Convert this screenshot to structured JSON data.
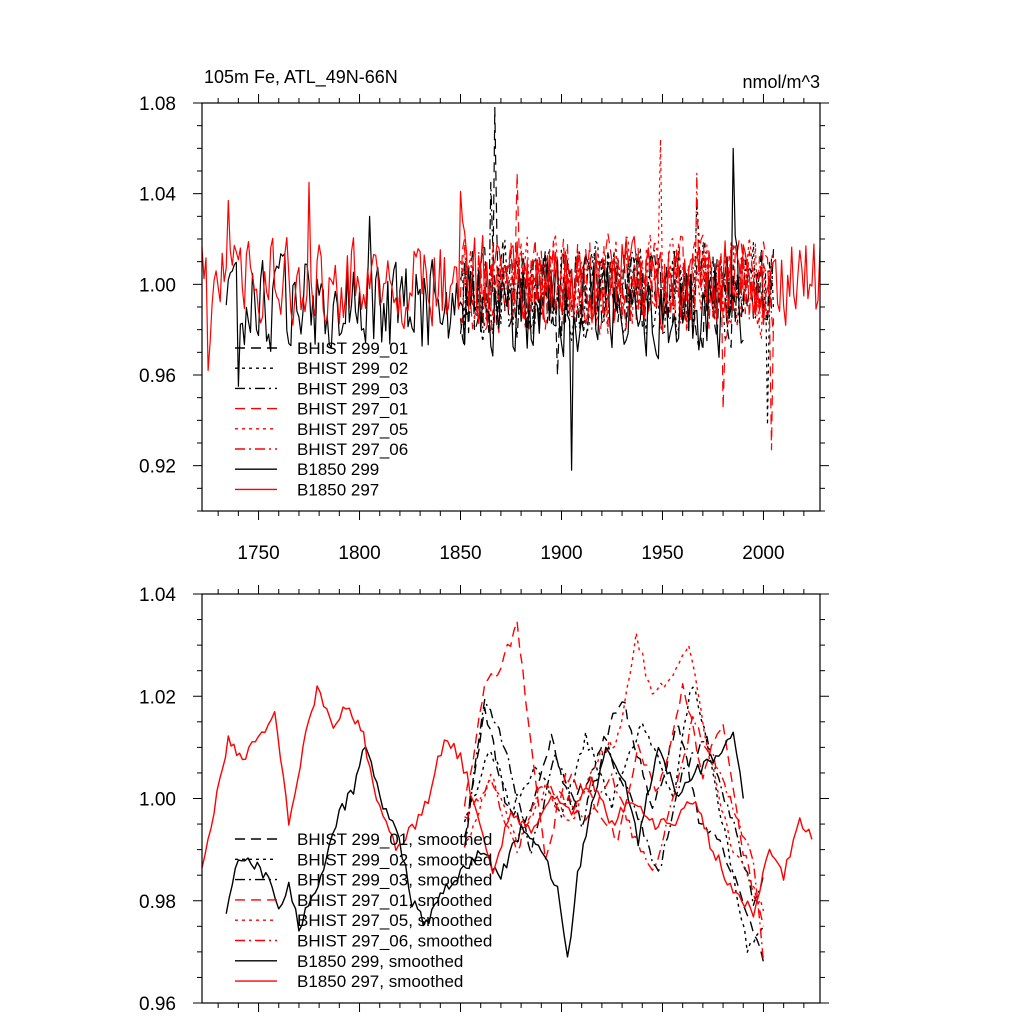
{
  "chart_data": [
    {
      "type": "line",
      "title": "105m Fe, ATL_49N-66N",
      "units": "nmol/m^3",
      "xlabel": "",
      "ylabel": "",
      "xlim": [
        1722,
        2028
      ],
      "ylim": [
        0.9,
        1.08
      ],
      "xticks": [
        1750,
        1800,
        1850,
        1900,
        1950,
        2000
      ],
      "xtick_labels": [
        "1750",
        "1800",
        "1850",
        "1900",
        "1950",
        "2000"
      ],
      "yticks": [
        0.92,
        0.96,
        1.0,
        1.04,
        1.08
      ],
      "ytick_labels": [
        "0.92",
        "0.96",
        "1.00",
        "1.04",
        "1.08"
      ],
      "legend_position": "bottom-left",
      "series": [
        {
          "name": "BHIST 299_01",
          "color": "#000000",
          "style": "dash",
          "x_range": [
            1850,
            2005
          ],
          "mean": 0.995,
          "amp": 0.022,
          "peaks": [
            [
              1867,
              1.078
            ],
            [
              1898,
              0.96
            ]
          ]
        },
        {
          "name": "BHIST 299_02",
          "color": "#000000",
          "style": "dot",
          "x_range": [
            1850,
            2005
          ],
          "mean": 0.997,
          "amp": 0.022,
          "peaks": [
            [
              2002,
              0.938
            ],
            [
              1967,
              1.037
            ]
          ]
        },
        {
          "name": "BHIST 299_03",
          "color": "#000000",
          "style": "dashdot",
          "x_range": [
            1850,
            2005
          ],
          "mean": 0.996,
          "amp": 0.02,
          "peaks": [
            [
              1865,
              1.045
            ]
          ]
        },
        {
          "name": "BHIST 297_01",
          "color": "#ff0000",
          "style": "dash",
          "x_range": [
            1850,
            2005
          ],
          "mean": 0.999,
          "amp": 0.022,
          "peaks": [
            [
              1878,
              1.049
            ],
            [
              2004,
              0.927
            ],
            [
              1980,
              0.945
            ]
          ]
        },
        {
          "name": "BHIST 297_05",
          "color": "#ff0000",
          "style": "dot",
          "x_range": [
            1850,
            2005
          ],
          "mean": 1.0,
          "amp": 0.022,
          "peaks": [
            [
              1949,
              1.064
            ]
          ]
        },
        {
          "name": "BHIST 297_06",
          "color": "#ff0000",
          "style": "dashdot",
          "x_range": [
            1850,
            2005
          ],
          "mean": 0.998,
          "amp": 0.02,
          "peaks": [
            [
              1967,
              1.049
            ]
          ]
        },
        {
          "name": "B1850 299",
          "color": "#000000",
          "style": "solid",
          "x_range": [
            1734,
            1990
          ],
          "mean": 0.99,
          "amp": 0.022,
          "peaks": [
            [
              1905,
              0.918
            ],
            [
              1985,
              1.06
            ],
            [
              1740,
              0.955
            ],
            [
              1805,
              1.03
            ]
          ]
        },
        {
          "name": "B1850 297",
          "color": "#ff0000",
          "style": "solid",
          "x_range": [
            1722,
            2028
          ],
          "mean": 1.002,
          "amp": 0.02,
          "peaks": [
            [
              1775,
              1.045
            ],
            [
              1735,
              1.037
            ],
            [
              1850,
              1.041
            ],
            [
              1725,
              0.962
            ]
          ]
        }
      ]
    },
    {
      "type": "line",
      "title": "",
      "xlabel": "",
      "ylabel": "",
      "xlim": [
        1722,
        2028
      ],
      "ylim": [
        0.96,
        1.04
      ],
      "xticks": [
        1750,
        1800,
        1850,
        1900,
        1950,
        2000
      ],
      "yticks": [
        0.96,
        0.98,
        1.0,
        1.02,
        1.04
      ],
      "ytick_labels": [
        "0.96",
        "0.98",
        "1.00",
        "1.02",
        "1.04"
      ],
      "legend_position": "bottom-left",
      "series": [
        {
          "name": "BHIST 299_01, smoothed",
          "color": "#000000",
          "style": "dash",
          "points": [
            [
              1852,
              0.992
            ],
            [
              1862,
              1.018
            ],
            [
              1872,
              1.0
            ],
            [
              1882,
              0.995
            ],
            [
              1895,
              1.012
            ],
            [
              1905,
              0.998
            ],
            [
              1918,
              1.008
            ],
            [
              1930,
              1.02
            ],
            [
              1945,
              0.998
            ],
            [
              1958,
              1.015
            ],
            [
              1968,
              0.996
            ],
            [
              1980,
              0.99
            ],
            [
              1992,
              0.978
            ],
            [
              2000,
              0.968
            ]
          ]
        },
        {
          "name": "BHIST 299_02, smoothed",
          "color": "#000000",
          "style": "dot",
          "points": [
            [
              1852,
              0.995
            ],
            [
              1865,
              1.01
            ],
            [
              1875,
              0.998
            ],
            [
              1888,
              1.006
            ],
            [
              1900,
              0.996
            ],
            [
              1912,
              1.012
            ],
            [
              1925,
              0.999
            ],
            [
              1940,
              1.015
            ],
            [
              1955,
              1.0
            ],
            [
              1965,
              1.023
            ],
            [
              1975,
              1.005
            ],
            [
              1985,
              0.985
            ],
            [
              1992,
              0.971
            ],
            [
              2000,
              0.975
            ]
          ]
        },
        {
          "name": "BHIST 299_03, smoothed",
          "color": "#000000",
          "style": "dashdot",
          "points": [
            [
              1852,
              0.99
            ],
            [
              1862,
              1.02
            ],
            [
              1872,
              1.01
            ],
            [
              1885,
              0.99
            ],
            [
              1897,
              1.008
            ],
            [
              1910,
              0.995
            ],
            [
              1922,
              1.01
            ],
            [
              1935,
              1.0
            ],
            [
              1948,
              0.985
            ],
            [
              1960,
              1.005
            ],
            [
              1972,
              1.012
            ],
            [
              1985,
              0.995
            ],
            [
              1995,
              0.98
            ],
            [
              2000,
              0.985
            ]
          ]
        },
        {
          "name": "BHIST 297_01, smoothed",
          "color": "#ff0000",
          "style": "dash",
          "points": [
            [
              1852,
              0.998
            ],
            [
              1862,
              1.022
            ],
            [
              1870,
              1.025
            ],
            [
              1878,
              1.035
            ],
            [
              1885,
              1.01
            ],
            [
              1892,
              0.988
            ],
            [
              1902,
              1.005
            ],
            [
              1915,
              1.0
            ],
            [
              1928,
              0.992
            ],
            [
              1938,
              1.01
            ],
            [
              1948,
              1.001
            ],
            [
              1960,
              1.022
            ],
            [
              1970,
              1.005
            ],
            [
              1980,
              1.015
            ],
            [
              1990,
              0.99
            ],
            [
              2000,
              0.975
            ]
          ]
        },
        {
          "name": "BHIST 297_05, smoothed",
          "color": "#ff0000",
          "style": "dot",
          "points": [
            [
              1852,
              0.99
            ],
            [
              1865,
              1.005
            ],
            [
              1878,
              0.992
            ],
            [
              1892,
              1.002
            ],
            [
              1905,
              0.995
            ],
            [
              1918,
              1.008
            ],
            [
              1928,
              1.012
            ],
            [
              1937,
              1.032
            ],
            [
              1945,
              1.02
            ],
            [
              1955,
              1.023
            ],
            [
              1963,
              1.03
            ],
            [
              1972,
              1.01
            ],
            [
              1985,
              0.99
            ],
            [
              2000,
              0.978
            ]
          ]
        },
        {
          "name": "BHIST 297_06, smoothed",
          "color": "#ff0000",
          "style": "dashdot",
          "points": [
            [
              1852,
              0.996
            ],
            [
              1865,
              1.003
            ],
            [
              1878,
              0.99
            ],
            [
              1890,
              1.003
            ],
            [
              1902,
              1.0
            ],
            [
              1912,
              0.995
            ],
            [
              1925,
              1.005
            ],
            [
              1935,
              0.993
            ],
            [
              1945,
              0.985
            ],
            [
              1955,
              1.0
            ],
            [
              1965,
              1.015
            ],
            [
              1975,
              1.008
            ],
            [
              1985,
              0.998
            ],
            [
              1995,
              0.987
            ],
            [
              2000,
              0.968
            ]
          ]
        },
        {
          "name": "B1850 299, smoothed",
          "color": "#000000",
          "style": "solid",
          "points": [
            [
              1734,
              0.977
            ],
            [
              1740,
              0.988
            ],
            [
              1748,
              0.987
            ],
            [
              1755,
              0.984
            ],
            [
              1760,
              0.978
            ],
            [
              1765,
              0.983
            ],
            [
              1770,
              0.975
            ],
            [
              1778,
              0.982
            ],
            [
              1785,
              0.99
            ],
            [
              1790,
              0.997
            ],
            [
              1797,
              1.002
            ],
            [
              1803,
              1.011
            ],
            [
              1810,
              1.0
            ],
            [
              1818,
              0.995
            ],
            [
              1826,
              0.98
            ],
            [
              1833,
              0.975
            ],
            [
              1840,
              0.982
            ],
            [
              1850,
              0.985
            ],
            [
              1860,
              0.99
            ],
            [
              1870,
              0.985
            ],
            [
              1880,
              0.994
            ],
            [
              1890,
              0.99
            ],
            [
              1898,
              0.982
            ],
            [
              1903,
              0.968
            ],
            [
              1908,
              0.985
            ],
            [
              1915,
              0.998
            ],
            [
              1922,
              1.01
            ],
            [
              1930,
              1.005
            ],
            [
              1938,
              0.992
            ],
            [
              1948,
              1.01
            ],
            [
              1958,
              1.0
            ],
            [
              1966,
              1.005
            ],
            [
              1975,
              1.008
            ],
            [
              1985,
              1.013
            ],
            [
              1990,
              1.0
            ]
          ]
        },
        {
          "name": "B1850 297, smoothed",
          "color": "#ff0000",
          "style": "solid",
          "points": [
            [
              1722,
              0.986
            ],
            [
              1728,
              0.998
            ],
            [
              1735,
              1.012
            ],
            [
              1742,
              1.008
            ],
            [
              1750,
              1.012
            ],
            [
              1758,
              1.016
            ],
            [
              1765,
              0.995
            ],
            [
              1772,
              1.01
            ],
            [
              1779,
              1.021
            ],
            [
              1787,
              1.015
            ],
            [
              1795,
              1.018
            ],
            [
              1802,
              1.012
            ],
            [
              1810,
              0.998
            ],
            [
              1818,
              0.99
            ],
            [
              1826,
              0.994
            ],
            [
              1834,
              1.0
            ],
            [
              1842,
              1.012
            ],
            [
              1850,
              1.008
            ],
            [
              1858,
              0.998
            ],
            [
              1866,
              0.985
            ],
            [
              1875,
              0.998
            ],
            [
              1885,
              0.993
            ],
            [
              1895,
              1.0
            ],
            [
              1905,
              0.998
            ],
            [
              1915,
              1.003
            ],
            [
              1925,
              0.995
            ],
            [
              1935,
              1.0
            ],
            [
              1945,
              0.995
            ],
            [
              1955,
              0.995
            ],
            [
              1965,
              1.0
            ],
            [
              1975,
              0.99
            ],
            [
              1985,
              0.982
            ],
            [
              1995,
              0.978
            ],
            [
              2003,
              0.99
            ],
            [
              2010,
              0.985
            ],
            [
              2018,
              0.995
            ],
            [
              2024,
              0.992
            ]
          ]
        }
      ]
    }
  ]
}
